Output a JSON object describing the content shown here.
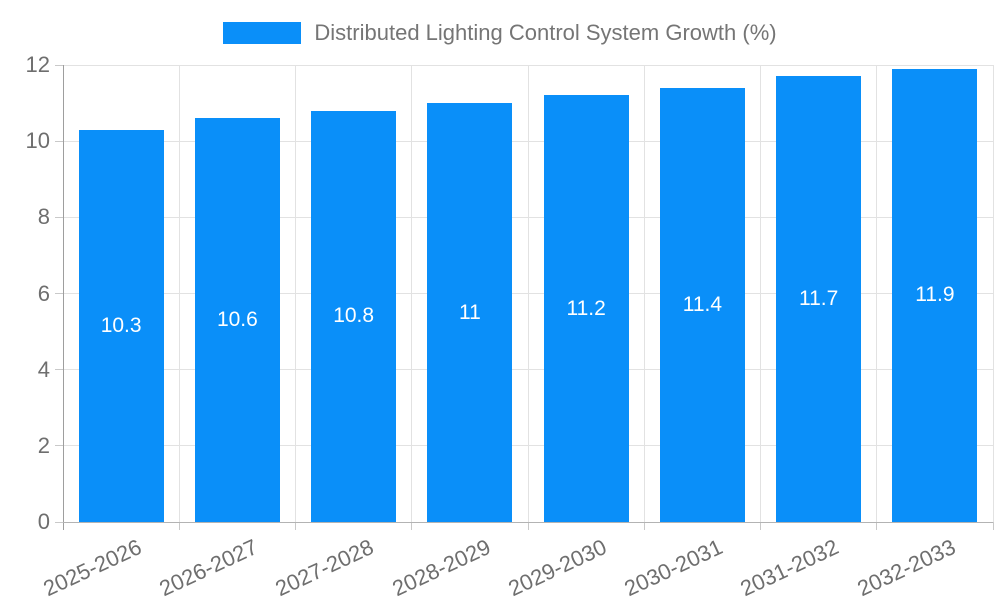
{
  "legend": {
    "label": "Distributed Lighting Control System Growth (%)"
  },
  "chart_data": {
    "type": "bar",
    "title": "Distributed Lighting Control System Growth (%)",
    "categories": [
      "2025-2026",
      "2026-2027",
      "2027-2028",
      "2028-2029",
      "2029-2030",
      "2030-2031",
      "2031-2032",
      "2032-2033"
    ],
    "values": [
      10.3,
      10.6,
      10.8,
      11,
      11.2,
      11.4,
      11.7,
      11.9
    ],
    "xlabel": "",
    "ylabel": "",
    "ylim": [
      0,
      12
    ],
    "yticks": [
      0,
      2,
      4,
      6,
      8,
      10,
      12
    ],
    "grid": true,
    "legend_position": "top-center",
    "bar_labels_inside": true,
    "x_label_rotation_deg": -25,
    "colors": {
      "bar": "#0a8ff9",
      "bar_value_label": "#ffffff",
      "grid": "#e2e2e2",
      "y_axis_line": "#9e9e9e",
      "x_axis_line": "#b3b3b3",
      "tick_mark": "#c9c9c9",
      "tick_label": "#6e6e6e",
      "legend_text": "#757575",
      "background": "#ffffff"
    }
  }
}
